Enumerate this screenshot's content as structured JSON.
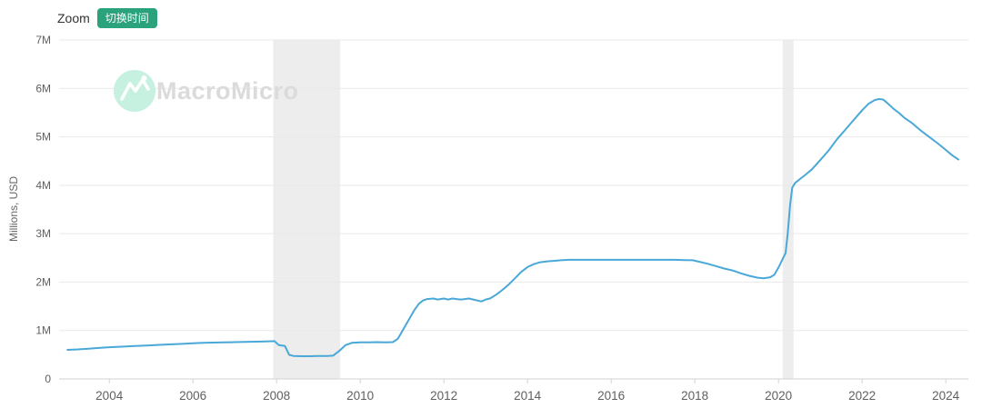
{
  "header": {
    "zoom_label": "Zoom",
    "switch_time_label": "切换时间"
  },
  "watermark": {
    "text": "MacroMicro",
    "icon": "mountain-chart-icon"
  },
  "colors": {
    "accent_green": "#2aa37c",
    "line_blue": "#4aa8d8",
    "grid": "#e9e9e9",
    "axis_line": "#d2d2d2",
    "tick_text": "#606060",
    "recession_band": "#ededed",
    "watermark_circle": "#c6f0e0",
    "watermark_glyph": "#ffffff",
    "watermark_text": "#dbdbdb"
  },
  "chart_data": {
    "type": "line",
    "title": "",
    "xlabel": "",
    "ylabel": "Millions, USD",
    "ylim": [
      0,
      7
    ],
    "xlim": [
      2002.8,
      2024.54
    ],
    "grid": true,
    "legend_position": "none",
    "yticks": [
      {
        "v": 0,
        "label": "0"
      },
      {
        "v": 1,
        "label": "1M"
      },
      {
        "v": 2,
        "label": "2M"
      },
      {
        "v": 3,
        "label": "3M"
      },
      {
        "v": 4,
        "label": "4M"
      },
      {
        "v": 5,
        "label": "5M"
      },
      {
        "v": 6,
        "label": "6M"
      },
      {
        "v": 7,
        "label": "7M"
      }
    ],
    "xticks": [
      {
        "v": 2004,
        "label": "2004"
      },
      {
        "v": 2006,
        "label": "2006"
      },
      {
        "v": 2008,
        "label": "2008"
      },
      {
        "v": 2010,
        "label": "2010"
      },
      {
        "v": 2012,
        "label": "2012"
      },
      {
        "v": 2014,
        "label": "2014"
      },
      {
        "v": 2016,
        "label": "2016"
      },
      {
        "v": 2018,
        "label": "2018"
      },
      {
        "v": 2020,
        "label": "2020"
      },
      {
        "v": 2022,
        "label": "2022"
      },
      {
        "v": 2024,
        "label": "2024"
      }
    ],
    "recession_bands": [
      {
        "from": 2007.92,
        "to": 2009.52
      },
      {
        "from": 2020.1,
        "to": 2020.36
      }
    ],
    "series": [
      {
        "name": "value",
        "points": [
          [
            2003.0,
            0.6
          ],
          [
            2003.25,
            0.61
          ],
          [
            2003.5,
            0.625
          ],
          [
            2003.75,
            0.64
          ],
          [
            2004.0,
            0.655
          ],
          [
            2004.25,
            0.665
          ],
          [
            2004.5,
            0.675
          ],
          [
            2004.75,
            0.685
          ],
          [
            2005.0,
            0.695
          ],
          [
            2005.25,
            0.705
          ],
          [
            2005.5,
            0.715
          ],
          [
            2005.75,
            0.725
          ],
          [
            2006.0,
            0.735
          ],
          [
            2006.25,
            0.745
          ],
          [
            2006.5,
            0.75
          ],
          [
            2006.75,
            0.755
          ],
          [
            2007.0,
            0.76
          ],
          [
            2007.25,
            0.765
          ],
          [
            2007.5,
            0.77
          ],
          [
            2007.75,
            0.775
          ],
          [
            2007.95,
            0.78
          ],
          [
            2008.05,
            0.7
          ],
          [
            2008.2,
            0.68
          ],
          [
            2008.3,
            0.5
          ],
          [
            2008.4,
            0.475
          ],
          [
            2008.6,
            0.47
          ],
          [
            2008.8,
            0.47
          ],
          [
            2009.0,
            0.475
          ],
          [
            2009.2,
            0.475
          ],
          [
            2009.35,
            0.48
          ],
          [
            2009.5,
            0.58
          ],
          [
            2009.65,
            0.7
          ],
          [
            2009.8,
            0.745
          ],
          [
            2010.0,
            0.755
          ],
          [
            2010.2,
            0.755
          ],
          [
            2010.4,
            0.76
          ],
          [
            2010.6,
            0.755
          ],
          [
            2010.78,
            0.76
          ],
          [
            2010.9,
            0.83
          ],
          [
            2011.0,
            0.98
          ],
          [
            2011.1,
            1.13
          ],
          [
            2011.2,
            1.28
          ],
          [
            2011.3,
            1.43
          ],
          [
            2011.4,
            1.55
          ],
          [
            2011.5,
            1.62
          ],
          [
            2011.6,
            1.65
          ],
          [
            2011.75,
            1.66
          ],
          [
            2011.85,
            1.64
          ],
          [
            2012.0,
            1.66
          ],
          [
            2012.1,
            1.64
          ],
          [
            2012.2,
            1.66
          ],
          [
            2012.3,
            1.65
          ],
          [
            2012.4,
            1.64
          ],
          [
            2012.5,
            1.65
          ],
          [
            2012.6,
            1.66
          ],
          [
            2012.7,
            1.64
          ],
          [
            2012.8,
            1.62
          ],
          [
            2012.9,
            1.6
          ],
          [
            2013.0,
            1.64
          ],
          [
            2013.1,
            1.66
          ],
          [
            2013.25,
            1.74
          ],
          [
            2013.4,
            1.84
          ],
          [
            2013.55,
            1.95
          ],
          [
            2013.7,
            2.08
          ],
          [
            2013.85,
            2.21
          ],
          [
            2014.0,
            2.31
          ],
          [
            2014.15,
            2.37
          ],
          [
            2014.3,
            2.41
          ],
          [
            2014.5,
            2.43
          ],
          [
            2014.65,
            2.44
          ],
          [
            2014.8,
            2.45
          ],
          [
            2015.0,
            2.46
          ],
          [
            2015.25,
            2.46
          ],
          [
            2015.5,
            2.46
          ],
          [
            2015.75,
            2.46
          ],
          [
            2016.0,
            2.46
          ],
          [
            2016.25,
            2.46
          ],
          [
            2016.5,
            2.46
          ],
          [
            2016.75,
            2.46
          ],
          [
            2017.0,
            2.46
          ],
          [
            2017.25,
            2.46
          ],
          [
            2017.5,
            2.46
          ],
          [
            2017.75,
            2.455
          ],
          [
            2017.95,
            2.45
          ],
          [
            2018.1,
            2.42
          ],
          [
            2018.3,
            2.38
          ],
          [
            2018.5,
            2.33
          ],
          [
            2018.7,
            2.28
          ],
          [
            2018.9,
            2.24
          ],
          [
            2019.1,
            2.18
          ],
          [
            2019.3,
            2.13
          ],
          [
            2019.5,
            2.09
          ],
          [
            2019.65,
            2.08
          ],
          [
            2019.8,
            2.1
          ],
          [
            2019.9,
            2.15
          ],
          [
            2020.0,
            2.3
          ],
          [
            2020.1,
            2.48
          ],
          [
            2020.17,
            2.6
          ],
          [
            2020.22,
            3.0
          ],
          [
            2020.28,
            3.6
          ],
          [
            2020.33,
            3.95
          ],
          [
            2020.4,
            4.05
          ],
          [
            2020.5,
            4.12
          ],
          [
            2020.65,
            4.22
          ],
          [
            2020.8,
            4.33
          ],
          [
            2021.0,
            4.52
          ],
          [
            2021.2,
            4.72
          ],
          [
            2021.4,
            4.95
          ],
          [
            2021.6,
            5.15
          ],
          [
            2021.8,
            5.35
          ],
          [
            2022.0,
            5.55
          ],
          [
            2022.15,
            5.68
          ],
          [
            2022.3,
            5.76
          ],
          [
            2022.4,
            5.78
          ],
          [
            2022.5,
            5.77
          ],
          [
            2022.6,
            5.7
          ],
          [
            2022.75,
            5.58
          ],
          [
            2022.9,
            5.48
          ],
          [
            2023.0,
            5.4
          ],
          [
            2023.2,
            5.28
          ],
          [
            2023.4,
            5.13
          ],
          [
            2023.6,
            5.0
          ],
          [
            2023.8,
            4.87
          ],
          [
            2024.0,
            4.73
          ],
          [
            2024.15,
            4.62
          ],
          [
            2024.3,
            4.53
          ]
        ]
      }
    ]
  }
}
